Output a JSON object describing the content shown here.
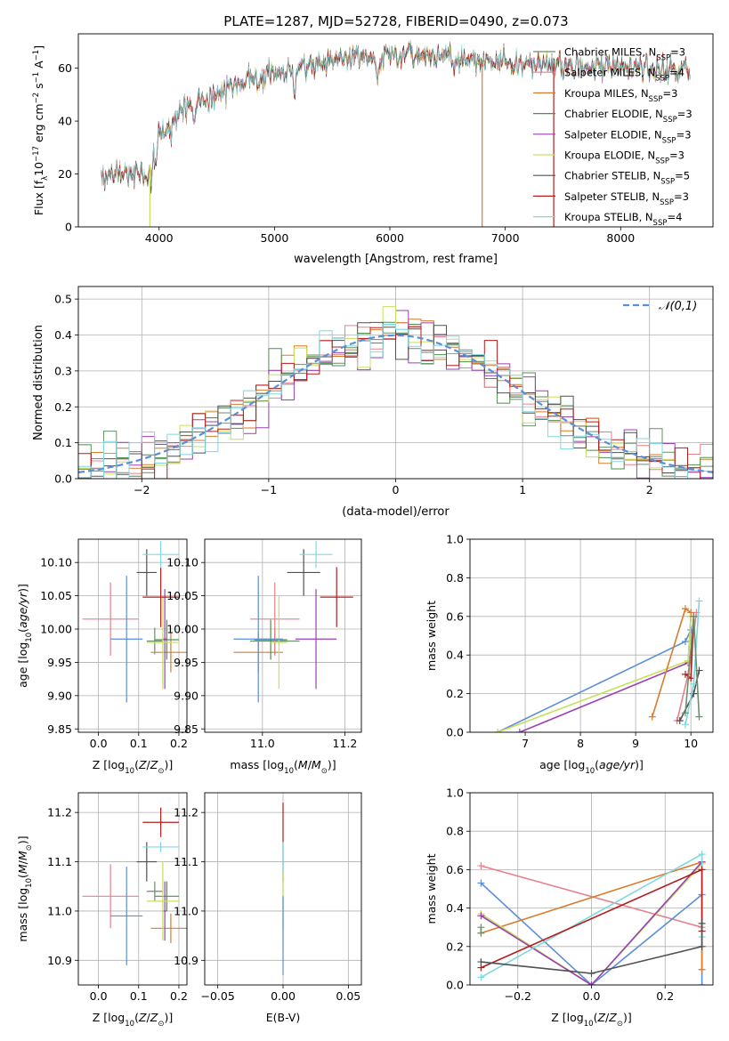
{
  "figure_title": "PLATE=1287, MJD=52728, FIBERID=0490, z=0.073",
  "models": [
    {
      "name": "Chabrier MILES",
      "nssp": "3",
      "color": "#6b8e6b"
    },
    {
      "name": "Salpeter MILES",
      "nssp": "4",
      "color": "#e8808c"
    },
    {
      "name": "Kroupa MILES",
      "nssp": "3",
      "color": "#d97b2b"
    },
    {
      "name": "Chabrier ELODIE",
      "nssp": "3",
      "color": "#4f8f4f"
    },
    {
      "name": "Salpeter ELODIE",
      "nssp": "3",
      "color": "#9b3fb5"
    },
    {
      "name": "Kroupa ELODIE",
      "nssp": "3",
      "color": "#c6e05a"
    },
    {
      "name": "Chabrier STELIB",
      "nssp": "5",
      "color": "#505050"
    },
    {
      "name": "Salpeter STELIB",
      "nssp": "3",
      "color": "#b51c1c"
    },
    {
      "name": "Kroupa STELIB",
      "nssp": "4",
      "color": "#7ed8e0"
    }
  ],
  "chart_data": [
    {
      "id": "spectrum",
      "type": "line",
      "xlabel": "wavelength [Angstrom, rest frame]",
      "ylabel": "Flux [f_λ 10^-17 erg cm^-2 s^-1 A^-1]",
      "xlim": [
        3300,
        8800
      ],
      "ylim": [
        0,
        73
      ],
      "xticks": [
        4000,
        5000,
        6000,
        7000,
        8000
      ],
      "yticks": [
        0,
        20,
        40,
        60
      ],
      "continuum": [
        [
          3500,
          18
        ],
        [
          3700,
          20
        ],
        [
          3900,
          21
        ],
        [
          4000,
          34
        ],
        [
          4200,
          44
        ],
        [
          4500,
          50
        ],
        [
          4800,
          57
        ],
        [
          5100,
          58
        ],
        [
          5300,
          62
        ],
        [
          5600,
          64
        ],
        [
          5900,
          65
        ],
        [
          6200,
          64
        ],
        [
          6600,
          64
        ],
        [
          7000,
          62
        ],
        [
          7300,
          62
        ],
        [
          7600,
          61
        ],
        [
          8000,
          60
        ],
        [
          8600,
          59
        ]
      ],
      "wavelength_range": [
        3500,
        8600
      ]
    },
    {
      "id": "residual_histogram",
      "type": "line",
      "xlabel": "(data-model)/error",
      "ylabel": "Normed distribution",
      "xlim": [
        -2.5,
        2.5
      ],
      "ylim": [
        0,
        0.535
      ],
      "xticks": [
        -2,
        -1,
        0,
        1,
        2
      ],
      "yticks": [
        0.0,
        0.1,
        0.2,
        0.3,
        0.4,
        0.5
      ],
      "legend": "𝒩(0,1)",
      "normal_color": "#5b8fd6",
      "bin_width": 0.1
    },
    {
      "id": "age_vs_Z",
      "type": "scatter",
      "xlabel": "Z [log10(Z/Z⊙)]",
      "ylabel": "age  [log10(age/yr)]",
      "xlim": [
        -0.05,
        0.22
      ],
      "ylim": [
        9.845,
        10.135
      ],
      "xticks": [
        0.0,
        0.1,
        0.2
      ],
      "xtick_labels": [
        "0.0",
        "0.1",
        "0.2"
      ],
      "yticks": [
        9.85,
        9.9,
        9.95,
        10.0,
        10.05,
        10.1
      ],
      "points": [
        {
          "model": 0,
          "x": 0.14,
          "y": 9.982,
          "xerr": 0.02,
          "yerr": 0.02
        },
        {
          "model": 1,
          "x": 0.03,
          "y": 10.015,
          "xerr": 0.07,
          "yerr": 0.055
        },
        {
          "model": 2,
          "x": 0.18,
          "y": 9.965,
          "xerr": 0.05,
          "yerr": 0.03
        },
        {
          "model": 3,
          "x": 0.17,
          "y": 9.984,
          "xerr": 0.03,
          "yerr": 0.03
        },
        {
          "model": 4,
          "x": 0.165,
          "y": 9.985,
          "xerr": 0.005,
          "yerr": 0.075
        },
        {
          "model": 5,
          "x": 0.16,
          "y": 9.98,
          "xerr": 0.04,
          "yerr": 0.07
        },
        {
          "model": 6,
          "x": 0.12,
          "y": 10.085,
          "xerr": 0.025,
          "yerr": 0.035
        },
        {
          "model": 7,
          "x": 0.155,
          "y": 10.048,
          "xerr": 0.045,
          "yerr": 0.045
        },
        {
          "model": 8,
          "x": 0.155,
          "y": 10.112,
          "xerr": 0.045,
          "yerr": 0.02
        },
        {
          "model": -1,
          "x": 0.07,
          "y": 9.985,
          "xerr": 0.04,
          "yerr": 0.095,
          "color": "#5b8fd6"
        }
      ]
    },
    {
      "id": "age_vs_mass",
      "type": "scatter",
      "xlabel": "mass [log10(M/M⊙)]",
      "ylabel": "",
      "xlim": [
        10.86,
        11.24
      ],
      "ylim": [
        9.845,
        10.135
      ],
      "xticks": [
        11.0,
        11.2
      ],
      "xtick_labels": [
        "11.0",
        "11.2"
      ],
      "yticks": [
        9.85,
        9.9,
        9.95,
        10.0,
        10.05,
        10.1
      ],
      "points": [
        {
          "model": 0,
          "x": 11.03,
          "y": 9.982,
          "xerr": 0.06,
          "yerr": 0.02
        },
        {
          "model": 1,
          "x": 11.03,
          "y": 10.015,
          "xerr": 0.06,
          "yerr": 0.055
        },
        {
          "model": 2,
          "x": 10.99,
          "y": 9.965,
          "xerr": 0.06,
          "yerr": 0.03
        },
        {
          "model": 3,
          "x": 11.02,
          "y": 9.984,
          "xerr": 0.04,
          "yerr": 0.03
        },
        {
          "model": 4,
          "x": 11.13,
          "y": 9.985,
          "xerr": 0.05,
          "yerr": 0.075
        },
        {
          "model": 5,
          "x": 11.04,
          "y": 9.98,
          "xerr": 0.02,
          "yerr": 0.07
        },
        {
          "model": 6,
          "x": 11.1,
          "y": 10.085,
          "xerr": 0.04,
          "yerr": 0.035
        },
        {
          "model": 7,
          "x": 11.18,
          "y": 10.048,
          "xerr": 0.04,
          "yerr": 0.045
        },
        {
          "model": 8,
          "x": 11.13,
          "y": 10.112,
          "xerr": 0.04,
          "yerr": 0.02
        },
        {
          "model": -1,
          "x": 10.99,
          "y": 9.985,
          "xerr": 0.06,
          "yerr": 0.095,
          "color": "#5b8fd6"
        }
      ]
    },
    {
      "id": "weight_vs_age",
      "type": "line",
      "xlabel": "age  [log10(age/yr)]",
      "ylabel": "mass weight",
      "xlim": [
        6.0,
        10.4
      ],
      "ylim": [
        0.0,
        1.0
      ],
      "xticks": [
        7,
        8,
        9,
        10
      ],
      "xtick_labels": [
        "7",
        "8",
        "9",
        "10"
      ],
      "yticks": [
        0.0,
        0.2,
        0.4,
        0.6,
        0.8,
        1.0
      ],
      "series": [
        {
          "model": -1,
          "color": "#5b8fd6",
          "x": [
            6.5,
            9.9,
            10.0
          ],
          "y": [
            0.0,
            0.47,
            0.53
          ]
        },
        {
          "model": 4,
          "x": [
            6.9,
            9.95,
            10.0
          ],
          "y": [
            0.0,
            0.36,
            0.6
          ]
        },
        {
          "model": 5,
          "x": [
            6.5,
            9.95,
            10.0
          ],
          "y": [
            0.0,
            0.37,
            0.6
          ]
        },
        {
          "model": 2,
          "x": [
            9.3,
            9.9,
            10.0
          ],
          "y": [
            0.08,
            0.64,
            0.62
          ]
        },
        {
          "model": 1,
          "x": [
            9.75,
            9.95,
            10.1
          ],
          "y": [
            0.06,
            0.3,
            0.62
          ]
        },
        {
          "model": 6,
          "x": [
            9.8,
            10.05,
            10.15
          ],
          "y": [
            0.06,
            0.2,
            0.32
          ]
        },
        {
          "model": 7,
          "x": [
            9.9,
            10.0,
            10.05
          ],
          "y": [
            0.3,
            0.28,
            0.6
          ]
        },
        {
          "model": 8,
          "x": [
            9.9,
            10.05,
            10.15
          ],
          "y": [
            0.04,
            0.25,
            0.68
          ]
        },
        {
          "model": 0,
          "x": [
            9.9,
            10.05,
            10.15
          ],
          "y": [
            0.1,
            0.6,
            0.08
          ]
        }
      ]
    },
    {
      "id": "mass_vs_Z",
      "type": "scatter",
      "xlabel": "Z [log10(Z/Z⊙)]",
      "ylabel": "mass [log10(M/M⊙)]",
      "xlim": [
        -0.05,
        0.22
      ],
      "ylim": [
        10.85,
        11.24
      ],
      "xticks": [
        0.0,
        0.1,
        0.2
      ],
      "xtick_labels": [
        "0.0",
        "0.1",
        "0.2"
      ],
      "yticks": [
        10.9,
        11.0,
        11.1,
        11.2
      ],
      "points": [
        {
          "model": 0,
          "x": 0.14,
          "y": 11.04,
          "xerr": 0.02,
          "yerr": 0.02
        },
        {
          "model": 1,
          "x": 0.03,
          "y": 11.03,
          "xerr": 0.07,
          "yerr": 0.065
        },
        {
          "model": 2,
          "x": 0.18,
          "y": 10.965,
          "xerr": 0.05,
          "yerr": 0.03
        },
        {
          "model": 3,
          "x": 0.17,
          "y": 11.03,
          "xerr": 0.03,
          "yerr": 0.03
        },
        {
          "model": 4,
          "x": 0.165,
          "y": 11.0,
          "xerr": 0.005,
          "yerr": 0.06
        },
        {
          "model": 5,
          "x": 0.16,
          "y": 11.02,
          "xerr": 0.04,
          "yerr": 0.08
        },
        {
          "model": 6,
          "x": 0.12,
          "y": 11.1,
          "xerr": 0.025,
          "yerr": 0.04
        },
        {
          "model": 7,
          "x": 0.155,
          "y": 11.18,
          "xerr": 0.045,
          "yerr": 0.03
        },
        {
          "model": 8,
          "x": 0.155,
          "y": 11.13,
          "xerr": 0.045,
          "yerr": 0.01
        },
        {
          "model": -1,
          "x": 0.07,
          "y": 10.99,
          "xerr": 0.04,
          "yerr": 0.1,
          "color": "#5b8fd6"
        }
      ]
    },
    {
      "id": "mass_vs_ebv",
      "type": "scatter",
      "xlabel": "E(B-V)",
      "ylabel": "",
      "xlim": [
        -0.06,
        0.06
      ],
      "ylim": [
        10.85,
        11.24
      ],
      "xticks": [
        -0.05,
        0.0,
        0.05
      ],
      "xtick_labels": [
        "−0.05",
        "0.00",
        "0.05"
      ],
      "yticks": [
        10.9,
        11.0,
        11.1,
        11.2
      ],
      "points": [
        {
          "model": 7,
          "x": 0.0,
          "y": 11.18,
          "xerr": 0.0,
          "yerr": 0.04
        },
        {
          "model": 6,
          "x": 0.0,
          "y": 11.1,
          "xerr": 0.0,
          "yerr": 0.04
        },
        {
          "model": 8,
          "x": 0.0,
          "y": 11.05,
          "xerr": 0.0,
          "yerr": 0.09
        },
        {
          "model": 5,
          "x": 0.0,
          "y": 11.0,
          "xerr": 0.0,
          "yerr": 0.08
        },
        {
          "model": -1,
          "x": 0.0,
          "y": 10.95,
          "xerr": 0.0,
          "yerr": 0.08,
          "color": "#5b8fd6"
        }
      ]
    },
    {
      "id": "weight_vs_Z",
      "type": "line",
      "xlabel": "Z [log10(Z/Z⊙)]",
      "ylabel": "mass weight",
      "xlim": [
        -0.33,
        0.33
      ],
      "ylim": [
        0.0,
        1.0
      ],
      "xticks": [
        -0.2,
        0.0,
        0.2
      ],
      "xtick_labels": [
        "−0.2",
        "0.0",
        "0.2"
      ],
      "yticks": [
        0.0,
        0.2,
        0.4,
        0.6,
        0.8,
        1.0
      ],
      "series": [
        {
          "model": 1,
          "x": [
            -0.3,
            0.3
          ],
          "y": [
            0.62,
            0.3
          ]
        },
        {
          "model": -1,
          "color": "#5b8fd6",
          "x": [
            -0.3,
            0.0,
            0.3,
            0.3
          ],
          "y": [
            0.53,
            0.0,
            0.47,
            0.0
          ]
        },
        {
          "model": 2,
          "x": [
            -0.3,
            0.3,
            0.3
          ],
          "y": [
            0.27,
            0.64,
            0.08
          ]
        },
        {
          "model": 5,
          "x": [
            -0.3,
            0.0,
            0.3
          ],
          "y": [
            0.37,
            0.0,
            0.63
          ]
        },
        {
          "model": 4,
          "x": [
            -0.3,
            0.0,
            0.3
          ],
          "y": [
            0.36,
            0.0,
            0.64
          ]
        },
        {
          "model": 8,
          "x": [
            -0.3,
            0.3,
            0.3
          ],
          "y": [
            0.04,
            0.68,
            0.25
          ]
        },
        {
          "model": 7,
          "x": [
            -0.3,
            0.3,
            0.3
          ],
          "y": [
            0.09,
            0.6,
            0.28
          ]
        },
        {
          "model": 6,
          "x": [
            -0.3,
            0.0,
            0.3,
            0.3
          ],
          "y": [
            0.12,
            0.06,
            0.2,
            0.32
          ]
        },
        {
          "model": 0,
          "x": [
            -0.3,
            -0.3
          ],
          "y": [
            0.3,
            0.27
          ]
        }
      ]
    }
  ]
}
